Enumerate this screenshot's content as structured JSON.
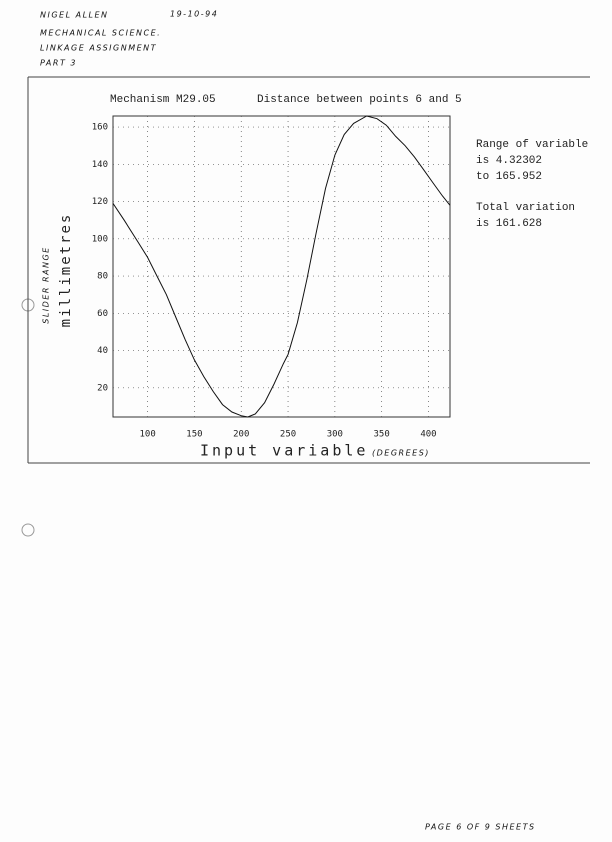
{
  "notes": {
    "author": "NIGEL ALLEN",
    "date": "19-10-94",
    "course": "MECHANICAL SCIENCE.",
    "assignment": "LINKAGE ASSIGNMENT",
    "part": "PART 3",
    "footer": "PAGE 6 OF 9 SHEETS"
  },
  "chart_data": {
    "type": "line",
    "title": "Mechanism M29.05",
    "subtitle": "Distance between points  6 and  5",
    "x_label": "Input variable",
    "x_label_note": "(DEGREES)",
    "y_label": "millimetres",
    "y_label_note": "SLIDER RANGE",
    "annotations": [
      "Range of variable",
      "is  4.32302",
      "to  165.952",
      "Total variation",
      "is  161.628"
    ],
    "color": "#111",
    "grid": true,
    "x": [
      63,
      75,
      90,
      100,
      110,
      120,
      130,
      140,
      150,
      160,
      170,
      180,
      190,
      200,
      207,
      215,
      225,
      235,
      245,
      250,
      260,
      270,
      280,
      290,
      300,
      310,
      320,
      334,
      345,
      355,
      365,
      375,
      385,
      395,
      405,
      415,
      423
    ],
    "values": [
      119,
      110,
      98,
      90,
      80,
      70,
      58,
      46,
      35,
      26,
      18,
      11,
      7,
      5,
      4.32302,
      6,
      12,
      22,
      33,
      38,
      55,
      78,
      103,
      127,
      145,
      156,
      162,
      165.952,
      164.5,
      161,
      155,
      150,
      144,
      137,
      130,
      123,
      118
    ],
    "xlim": [
      63,
      423
    ],
    "ylim": [
      4.32302,
      165.952
    ],
    "xticks": [
      100,
      150,
      200,
      250,
      300,
      350,
      400
    ],
    "yticks": [
      20,
      40,
      60,
      80,
      100,
      120,
      140,
      160
    ]
  }
}
